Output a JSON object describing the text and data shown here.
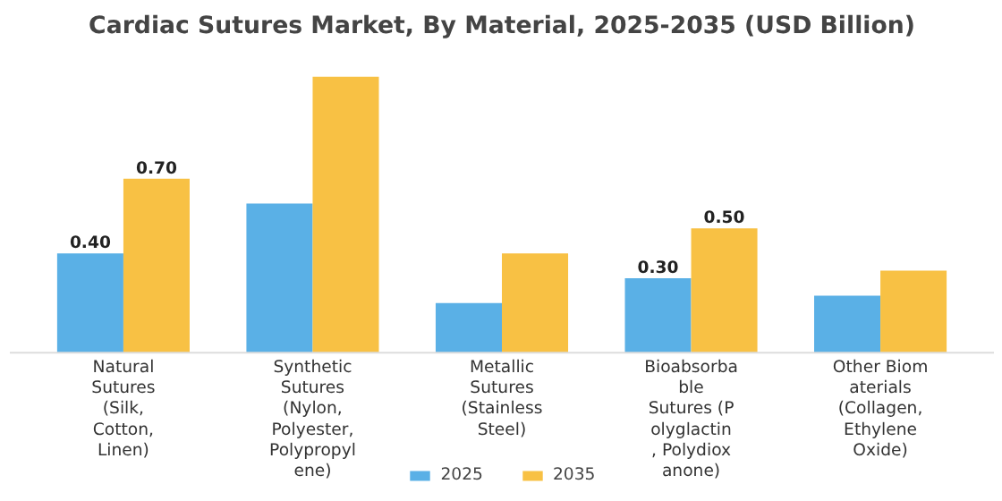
{
  "chart_data": {
    "type": "bar",
    "title": "Cardiac Sutures Market, By Material, 2025-2035 (USD Billion)",
    "categories": [
      "Natural Sutures (Silk, Cotton, Linen)",
      "Synthetic Sutures (Nylon, Polyester, Polypropylene)",
      "Metallic Sutures (Stainless Steel)",
      "Bioabsorbable Sutures (Polyglactin, Polydioxanone)",
      "Other Biomaterials (Collagen, Ethylene Oxide)"
    ],
    "series": [
      {
        "name": "2025",
        "color": "#5ab0e6",
        "values": [
          0.4,
          0.6,
          0.2,
          0.3,
          0.23
        ],
        "value_labels": [
          "0.40",
          null,
          null,
          "0.30",
          null
        ]
      },
      {
        "name": "2035",
        "color": "#f8c144",
        "values": [
          0.7,
          1.11,
          0.4,
          0.5,
          0.33
        ],
        "value_labels": [
          "0.70",
          null,
          null,
          "0.50",
          null
        ]
      }
    ],
    "legend": "bottom"
  }
}
